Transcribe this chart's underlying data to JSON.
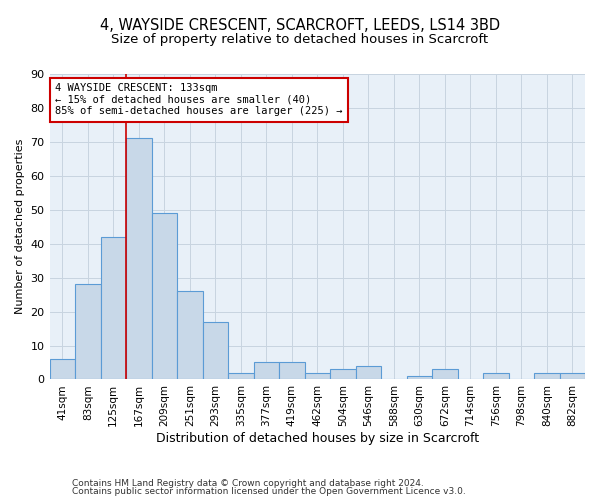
{
  "title_line1": "4, WAYSIDE CRESCENT, SCARCROFT, LEEDS, LS14 3BD",
  "title_line2": "Size of property relative to detached houses in Scarcroft",
  "xlabel": "Distribution of detached houses by size in Scarcroft",
  "ylabel": "Number of detached properties",
  "bin_labels": [
    "41sqm",
    "83sqm",
    "125sqm",
    "167sqm",
    "209sqm",
    "251sqm",
    "293sqm",
    "335sqm",
    "377sqm",
    "419sqm",
    "462sqm",
    "504sqm",
    "546sqm",
    "588sqm",
    "630sqm",
    "672sqm",
    "714sqm",
    "756sqm",
    "798sqm",
    "840sqm",
    "882sqm"
  ],
  "bar_values": [
    6,
    28,
    42,
    71,
    49,
    26,
    17,
    2,
    5,
    5,
    2,
    3,
    4,
    0,
    1,
    3,
    0,
    2,
    0,
    2,
    2
  ],
  "bar_color": "#c8d8e8",
  "bar_edgecolor": "#5b9bd5",
  "bar_linewidth": 0.8,
  "vline_x": 2.5,
  "vline_color": "#cc0000",
  "annotation_text": "4 WAYSIDE CRESCENT: 133sqm\n← 15% of detached houses are smaller (40)\n85% of semi-detached houses are larger (225) →",
  "annotation_box_color": "white",
  "annotation_box_edgecolor": "#cc0000",
  "ylim": [
    0,
    90
  ],
  "yticks": [
    0,
    10,
    20,
    30,
    40,
    50,
    60,
    70,
    80,
    90
  ],
  "grid_color": "#c8d4e0",
  "bg_color": "#e8f0f8",
  "footer_line1": "Contains HM Land Registry data © Crown copyright and database right 2024.",
  "footer_line2": "Contains public sector information licensed under the Open Government Licence v3.0.",
  "title_fontsize": 10.5,
  "subtitle_fontsize": 9.5,
  "ylabel_fontsize": 8,
  "xlabel_fontsize": 9,
  "tick_fontsize": 8,
  "xtick_fontsize": 7.5,
  "footer_fontsize": 6.5
}
